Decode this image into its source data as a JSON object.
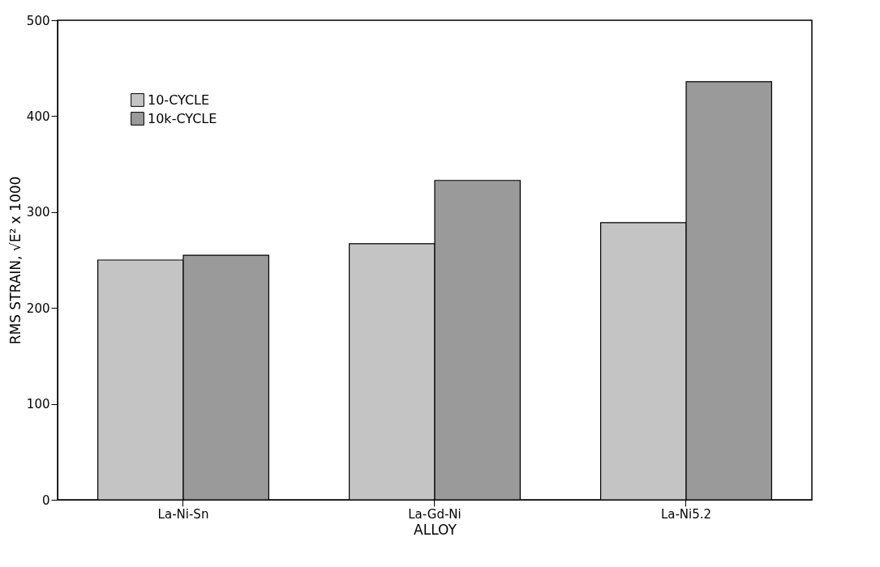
{
  "chart_data": {
    "type": "bar",
    "xlabel": "ALLOY",
    "ylabel": "RMS STRAIN, √E² x 1000",
    "categories": [
      "La-Ni-Sn",
      "La-Gd-Ni",
      "La-Ni5.2"
    ],
    "series": [
      {
        "name": "10-CYCLE",
        "color": "#c4c4c4",
        "values": [
          250,
          267,
          289
        ]
      },
      {
        "name": "10k-CYCLE",
        "color": "#9a9a9a",
        "values": [
          255,
          333,
          436
        ]
      }
    ],
    "ylim": [
      0,
      500
    ],
    "yticks": [
      0,
      100,
      200,
      300,
      400,
      500
    ],
    "grid": false,
    "legend": "top left"
  }
}
